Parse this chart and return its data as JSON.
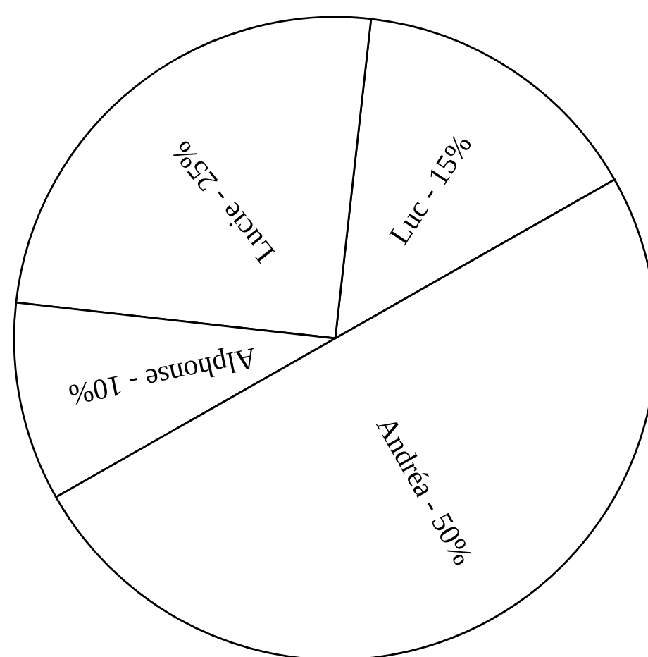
{
  "chart_data": {
    "type": "pie",
    "categories": [
      "Luc - 15%",
      "Lucie - 25%",
      "Alphonse - 10%",
      "Andréa - 50%"
    ],
    "values": [
      15,
      25,
      10,
      50
    ],
    "colors": [
      "#ffffff",
      "#ffffff",
      "#ffffff",
      "#ffffff"
    ]
  }
}
